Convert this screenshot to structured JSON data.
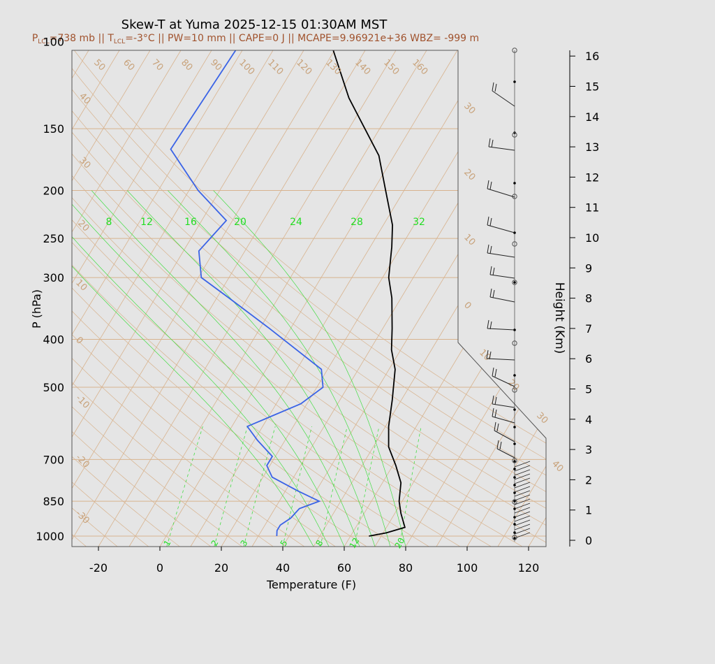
{
  "title": "Skew-T at Yuma 2025-12-15 01:30AM MST",
  "subtitle": {
    "p_lcl_label": "P",
    "p_lcl_sub": "LCL",
    "p_lcl_value": "=738 mb || T",
    "t_lcl_sub": "LCL",
    "rest": "=-3°C || PW=10 mm || CAPE=0 J || MCAPE=9.96921e+36 WBZ= -999 m"
  },
  "colors": {
    "temperature": "#000000",
    "dewpoint": "#3a63e6",
    "isotherm": "#d2b48c",
    "mixing_ratio": "#44dd44",
    "subtitle": "#a0522d"
  },
  "chart_data": {
    "type": "line",
    "xlabel": "Temperature (F)",
    "ylabel": "P (hPa)",
    "y2label": "Height (Km)",
    "x_range_F": [
      -28,
      126
    ],
    "p_range_hPa": [
      1050,
      100
    ],
    "log_pressure": true,
    "x_ticks": [
      -20,
      0,
      20,
      40,
      60,
      80,
      100,
      120
    ],
    "p_ticks": [
      100,
      150,
      200,
      250,
      300,
      400,
      500,
      700,
      850,
      1000
    ],
    "height_ticks_km": [
      0,
      1,
      2,
      3,
      4,
      5,
      6,
      7,
      8,
      9,
      10,
      11,
      12,
      13,
      14,
      15,
      16
    ],
    "isotherm_labels_F": [
      -30,
      -20,
      -10,
      0,
      10,
      20,
      30,
      40,
      50,
      60,
      70,
      80,
      90,
      100,
      110,
      120,
      130,
      140,
      150,
      160
    ],
    "mixing_ratio_labels_top": [
      "8",
      "12",
      "16",
      "20",
      "24",
      "28",
      "32"
    ],
    "mixing_ratio_labels_bottom": [
      "1",
      "2",
      "3",
      "5",
      "8",
      "12",
      "20"
    ],
    "temperature_series": {
      "name": "Temperature",
      "points": [
        {
          "p": 1000,
          "t": 66
        },
        {
          "p": 985,
          "t": 71
        },
        {
          "p": 960,
          "t": 76
        },
        {
          "p": 900,
          "t": 72
        },
        {
          "p": 850,
          "t": 69
        },
        {
          "p": 780,
          "t": 66
        },
        {
          "p": 720,
          "t": 61
        },
        {
          "p": 660,
          "t": 55
        },
        {
          "p": 600,
          "t": 51
        },
        {
          "p": 530,
          "t": 47
        },
        {
          "p": 460,
          "t": 42
        },
        {
          "p": 420,
          "t": 37
        },
        {
          "p": 380,
          "t": 33
        },
        {
          "p": 330,
          "t": 27
        },
        {
          "p": 300,
          "t": 22
        },
        {
          "p": 260,
          "t": 17
        },
        {
          "p": 235,
          "t": 13
        },
        {
          "p": 200,
          "t": 4
        },
        {
          "p": 170,
          "t": -5
        },
        {
          "p": 130,
          "t": -26
        },
        {
          "p": 100,
          "t": -43
        }
      ]
    },
    "dewpoint_series": {
      "name": "Dewpoint",
      "points": [
        {
          "p": 1000,
          "t": 36
        },
        {
          "p": 975,
          "t": 35
        },
        {
          "p": 950,
          "t": 35
        },
        {
          "p": 920,
          "t": 37
        },
        {
          "p": 880,
          "t": 38
        },
        {
          "p": 850,
          "t": 43
        },
        {
          "p": 810,
          "t": 34
        },
        {
          "p": 760,
          "t": 23
        },
        {
          "p": 720,
          "t": 19
        },
        {
          "p": 690,
          "t": 19
        },
        {
          "p": 640,
          "t": 11
        },
        {
          "p": 600,
          "t": 5
        },
        {
          "p": 540,
          "t": 18
        },
        {
          "p": 500,
          "t": 22
        },
        {
          "p": 460,
          "t": 18
        },
        {
          "p": 380,
          "t": -7
        },
        {
          "p": 330,
          "t": -26
        },
        {
          "p": 300,
          "t": -39
        },
        {
          "p": 265,
          "t": -45
        },
        {
          "p": 230,
          "t": -42
        },
        {
          "p": 200,
          "t": -57
        },
        {
          "p": 165,
          "t": -74
        },
        {
          "p": 100,
          "t": -72
        }
      ]
    }
  }
}
